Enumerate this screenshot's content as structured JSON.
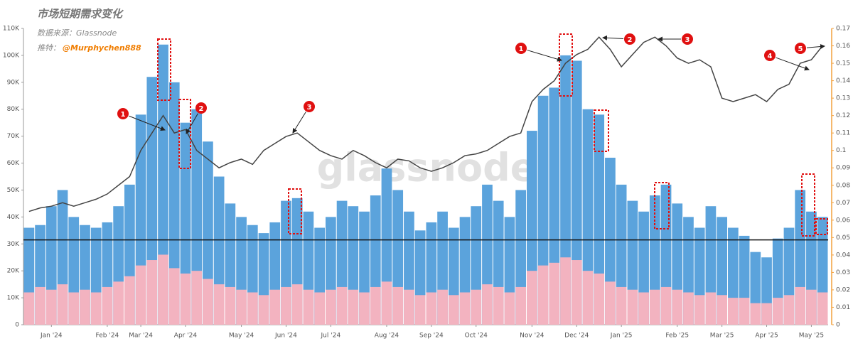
{
  "chart_data": {
    "type": "bar",
    "title": "市场短期需求变化",
    "source": "数据来源：Glassnode",
    "twitter_prefix": "推特：",
    "twitter_handle": "@Murphychen888",
    "watermark": "glassnode",
    "categories": [
      null,
      null,
      "Jan '24",
      null,
      null,
      null,
      null,
      "Feb '24",
      null,
      null,
      "Mar '24",
      null,
      null,
      null,
      "Apr '24",
      null,
      null,
      null,
      null,
      "May '24",
      null,
      null,
      null,
      "Jun '24",
      null,
      null,
      null,
      "Jul '24",
      null,
      null,
      null,
      null,
      "Aug '24",
      null,
      null,
      null,
      "Sep '24",
      null,
      null,
      null,
      "Oct '24",
      null,
      null,
      null,
      null,
      "Nov '24",
      null,
      null,
      null,
      "Dec '24",
      null,
      null,
      null,
      "Jan '25",
      null,
      null,
      null,
      null,
      "Feb '25",
      null,
      null,
      null,
      "Mar '25",
      null,
      null,
      null,
      "Apr '25",
      null,
      null,
      null,
      "May '25",
      null
    ],
    "series": [
      {
        "color": "#5ba3dc",
        "values": [
          36000,
          37000,
          44000,
          50000,
          40000,
          37000,
          36000,
          38000,
          44000,
          52000,
          78000,
          92000,
          104000,
          90000,
          75000,
          80000,
          68000,
          55000,
          45000,
          40000,
          37000,
          34000,
          38000,
          46000,
          47000,
          42000,
          36000,
          40000,
          46000,
          44000,
          42000,
          48000,
          58000,
          50000,
          42000,
          35000,
          38000,
          42000,
          36000,
          40000,
          44000,
          52000,
          46000,
          40000,
          50000,
          72000,
          85000,
          88000,
          100000,
          98000,
          80000,
          78000,
          62000,
          52000,
          46000,
          42000,
          48000,
          52000,
          45000,
          40000,
          36000,
          44000,
          40000,
          36000,
          33000,
          27000,
          25000,
          32000,
          36000,
          50000,
          42000,
          40000
        ]
      },
      {
        "color": "#f3b3c0",
        "values": [
          12000,
          14000,
          13000,
          15000,
          12000,
          13000,
          12000,
          14000,
          16000,
          18000,
          22000,
          24000,
          26000,
          21000,
          19000,
          20000,
          17000,
          15000,
          14000,
          13000,
          12000,
          11000,
          13000,
          14000,
          15000,
          13000,
          12000,
          13000,
          14000,
          13000,
          12000,
          14000,
          16000,
          14000,
          13000,
          11000,
          12000,
          13000,
          11000,
          12000,
          13000,
          15000,
          14000,
          12000,
          14000,
          20000,
          22000,
          23000,
          25000,
          24000,
          20000,
          19000,
          16000,
          14000,
          13000,
          12000,
          13000,
          14000,
          13000,
          12000,
          11000,
          12000,
          11000,
          10000,
          10000,
          8000,
          8000,
          10000,
          11000,
          14000,
          13000,
          12000
        ]
      },
      {
        "type": "line",
        "axis": "y2",
        "color": "#444444",
        "values": [
          0.065,
          0.067,
          0.068,
          0.07,
          0.068,
          0.07,
          0.072,
          0.075,
          0.08,
          0.085,
          0.1,
          0.11,
          0.12,
          0.11,
          0.112,
          0.1,
          0.095,
          0.09,
          0.093,
          0.095,
          0.092,
          0.1,
          0.104,
          0.108,
          0.11,
          0.105,
          0.1,
          0.097,
          0.095,
          0.1,
          0.097,
          0.093,
          0.09,
          0.095,
          0.094,
          0.09,
          0.088,
          0.09,
          0.093,
          0.097,
          0.098,
          0.1,
          0.104,
          0.108,
          0.11,
          0.128,
          0.135,
          0.14,
          0.15,
          0.155,
          0.158,
          0.165,
          0.158,
          0.148,
          0.155,
          0.162,
          0.165,
          0.16,
          0.153,
          0.15,
          0.152,
          0.148,
          0.13,
          0.128,
          0.13,
          0.132,
          0.128,
          0.135,
          0.138,
          0.15,
          0.152,
          0.16
        ]
      }
    ],
    "reference_line": 31500,
    "ylim": [
      0,
      110000
    ],
    "yticks": [
      0,
      {
        "value": 10000,
        "label": "10K"
      },
      {
        "value": 20000,
        "label": "20K"
      },
      {
        "value": 30000,
        "label": "30K"
      },
      {
        "value": 40000,
        "label": "40K"
      },
      {
        "value": 50000,
        "label": "50K"
      },
      {
        "value": 60000,
        "label": "60K"
      },
      {
        "value": 70000,
        "label": "70K"
      },
      {
        "value": 80000,
        "label": "80K"
      },
      {
        "value": 90000,
        "label": "90K"
      },
      {
        "value": 100000,
        "label": "100K"
      },
      {
        "value": 110000,
        "label": "110K"
      }
    ],
    "y2lim": [
      0,
      0.17
    ],
    "y2ticks": [
      0,
      0.01,
      0.02,
      0.03,
      0.04,
      0.05,
      0.06,
      0.07,
      0.08,
      0.09,
      0.1,
      0.11,
      0.12,
      0.13,
      0.14,
      0.15,
      0.16,
      0.17
    ],
    "annotations": [
      "1",
      "2",
      "3",
      "1",
      "2",
      "3",
      "4",
      "5"
    ]
  }
}
